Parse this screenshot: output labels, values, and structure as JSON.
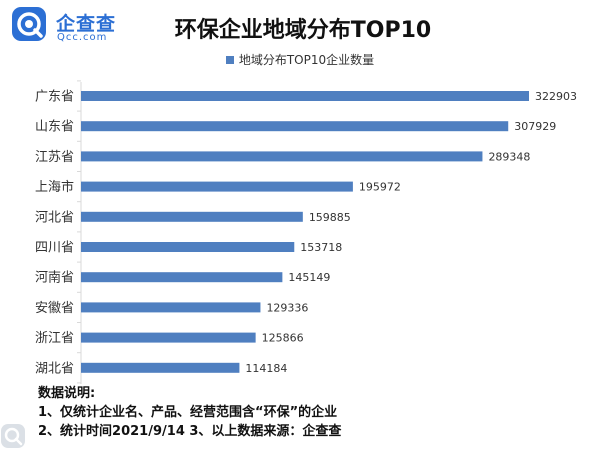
{
  "logo": {
    "name_cn": "企查查",
    "name_en": "Qcc.com",
    "brand_color": "#2c6fd4"
  },
  "title": "环保企业地域分布TOP10",
  "notes": {
    "heading": "数据说明:",
    "line1": "1、仅统计企业名、产品、经营范围含“环保”的企业",
    "line2": "2、统计时间2021/9/14    3、以上数据来源：企查查"
  },
  "chart_data": {
    "type": "bar",
    "orientation": "horizontal",
    "categories": [
      "广东省",
      "山东省",
      "江苏省",
      "上海市",
      "河北省",
      "四川省",
      "河南省",
      "安徽省",
      "浙江省",
      "湖北省"
    ],
    "series": [
      {
        "name": "地域分布TOP10企业数量",
        "values": [
          322903,
          307929,
          289348,
          195972,
          159885,
          153718,
          145149,
          129336,
          125866,
          114184
        ],
        "color": "#4f7fc0"
      }
    ],
    "xlim": [
      0,
      322903
    ],
    "legend": "top",
    "grid": false,
    "data_labels": true
  }
}
